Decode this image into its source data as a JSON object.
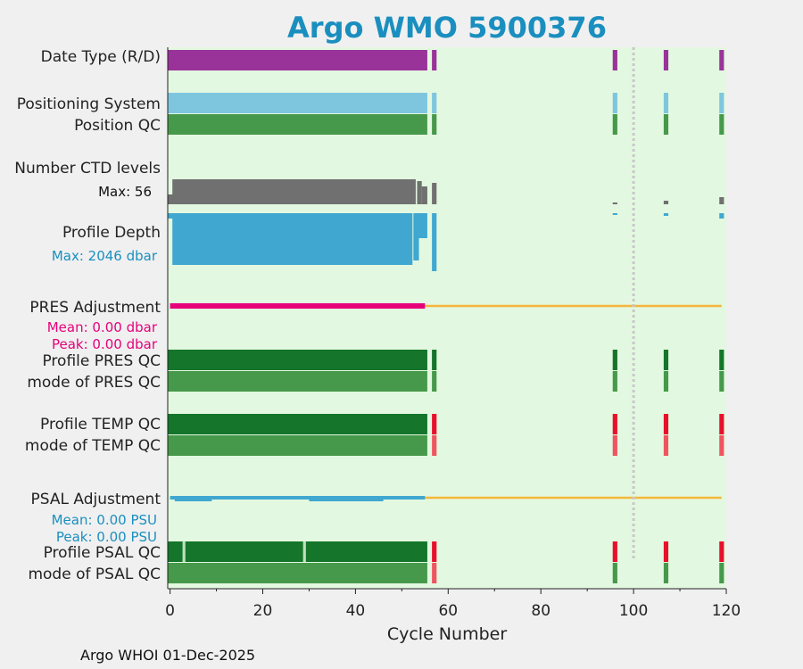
{
  "title": "Argo WMO 5900376",
  "footer": "Argo WHOI 01-Dec-2025",
  "colors": {
    "background": "#e3f8e0",
    "date_type": "#993399",
    "positioning": "#7ec6de",
    "qc_good_light": "#46994a",
    "qc_good_dark": "#14752b",
    "qc_bad": "#e8102b",
    "qc_bad_light": "#ef5560",
    "ctd_levels": "#707070",
    "profile_depth": "#40a8d0",
    "pres_adjust": "#e6007a",
    "adjust_none": "#f5b63c",
    "psal_adjust": "#40a8d0",
    "marker_line": "#c8c8c8",
    "blue_text": "#1a8fbf",
    "pink_text": "#e6007a"
  },
  "labels": {
    "date_type": "Date Type (R/D)",
    "positioning_system": "Positioning System",
    "position_qc": "Position QC",
    "number_ctd_levels": "Number CTD levels",
    "ctd_max": "Max: 56",
    "profile_depth": "Profile Depth",
    "depth_max": "Max: 2046 dbar",
    "pres_adjustment": "PRES Adjustment",
    "pres_mean": "Mean: 0.00 dbar",
    "pres_peak": "Peak: 0.00 dbar",
    "profile_pres_qc": "Profile PRES QC",
    "mode_pres_qc": "mode of PRES QC",
    "profile_temp_qc": "Profile TEMP QC",
    "mode_temp_qc": "mode of TEMP QC",
    "psal_adjustment": "PSAL Adjustment",
    "psal_mean": "Mean: 0.00 PSU",
    "psal_peak": "Peak: 0.00 PSU",
    "profile_psal_qc": "Profile PSAL QC",
    "mode_psal_qc": "mode of PSAL QC"
  },
  "chart_data": {
    "type": "bar",
    "title": "Argo WMO 5900376",
    "xlabel": "Cycle Number",
    "xlim": [
      -0.5,
      120
    ],
    "xticks": [
      0,
      20,
      40,
      60,
      80,
      100,
      120
    ],
    "marker_cycle": 100,
    "cycles_present": {
      "main_block": [
        0,
        55
      ],
      "isolated": [
        57,
        96,
        107,
        119
      ]
    },
    "ctd_levels_max": 56,
    "profile_depth_max_dbar": 2046,
    "pres_adjustment": {
      "mean_dbar": 0.0,
      "peak_dbar": 0.0
    },
    "psal_adjustment": {
      "mean_psu": 0.0,
      "peak_psu": 0.0
    },
    "temp_qc_bad_cycles": [
      57,
      96,
      107,
      119
    ],
    "psal_qc_bad_cycles": [
      57,
      96,
      107,
      119
    ],
    "psal_qc_light_cycles": [
      3,
      29
    ]
  }
}
